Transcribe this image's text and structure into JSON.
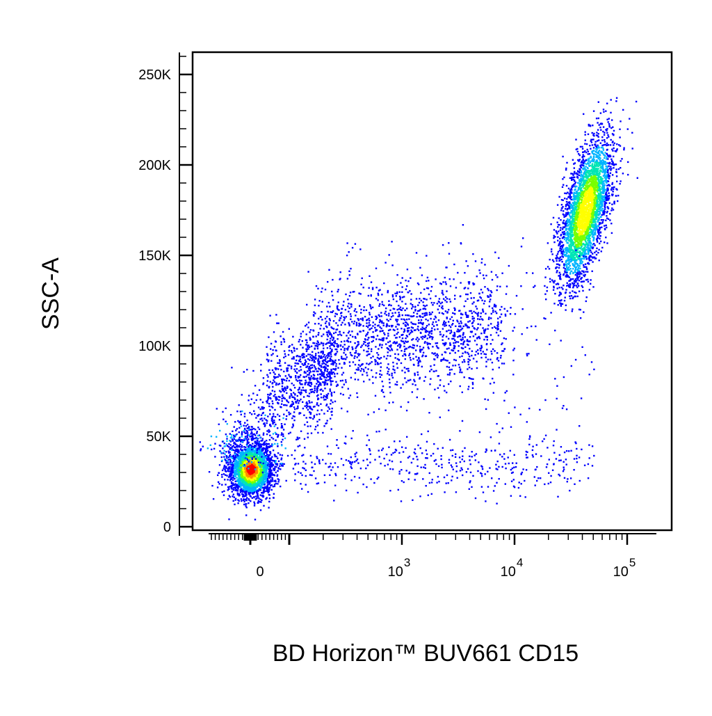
{
  "chart_data": {
    "type": "scatter",
    "style": "flow-cytometry-density-pseudocolor",
    "title": "",
    "xlabel": "BD Horizon™ BUV661 CD15",
    "ylabel": "SSC-A",
    "x_scale": "biexponential",
    "y_scale": "linear",
    "xlim": [
      -300,
      150000
    ],
    "ylim": [
      -5000,
      262144
    ],
    "x_ticks": [
      {
        "value": 0,
        "base": "0",
        "exp": ""
      },
      {
        "value": 1000,
        "base": "10",
        "exp": "3"
      },
      {
        "value": 10000,
        "base": "10",
        "exp": "4"
      },
      {
        "value": 100000,
        "base": "10",
        "exp": "5"
      }
    ],
    "y_ticks": [
      {
        "value": 0,
        "label": "0"
      },
      {
        "value": 50000,
        "label": "50K"
      },
      {
        "value": 100000,
        "label": "100K"
      },
      {
        "value": 150000,
        "label": "150K"
      },
      {
        "value": 200000,
        "label": "200K"
      },
      {
        "value": 250000,
        "label": "250K"
      }
    ],
    "grid": false,
    "legend": "none",
    "density_colors": [
      "#0000ff",
      "#00b4ff",
      "#00e6b4",
      "#78ff00",
      "#ffff00",
      "#ff8c00",
      "#ff0000"
    ],
    "populations": [
      {
        "name": "",
        "x_center": 0,
        "y_center": 32000,
        "x_spread": 150,
        "y_spread": 9000,
        "density": "high"
      },
      {
        "name": "",
        "x_center": 700,
        "y_center": 105000,
        "x_spread_decades": 0.7,
        "y_spread": 15000,
        "density": "low"
      },
      {
        "name": "",
        "x_center": 42000,
        "y_center": 175000,
        "x_spread_decades": 0.15,
        "y_spread": 30000,
        "density": "high"
      },
      {
        "name": "",
        "x_center": 2000,
        "y_center": 35000,
        "x_spread_decades": 0.8,
        "y_spread": 8000,
        "density": "sparse"
      }
    ]
  }
}
